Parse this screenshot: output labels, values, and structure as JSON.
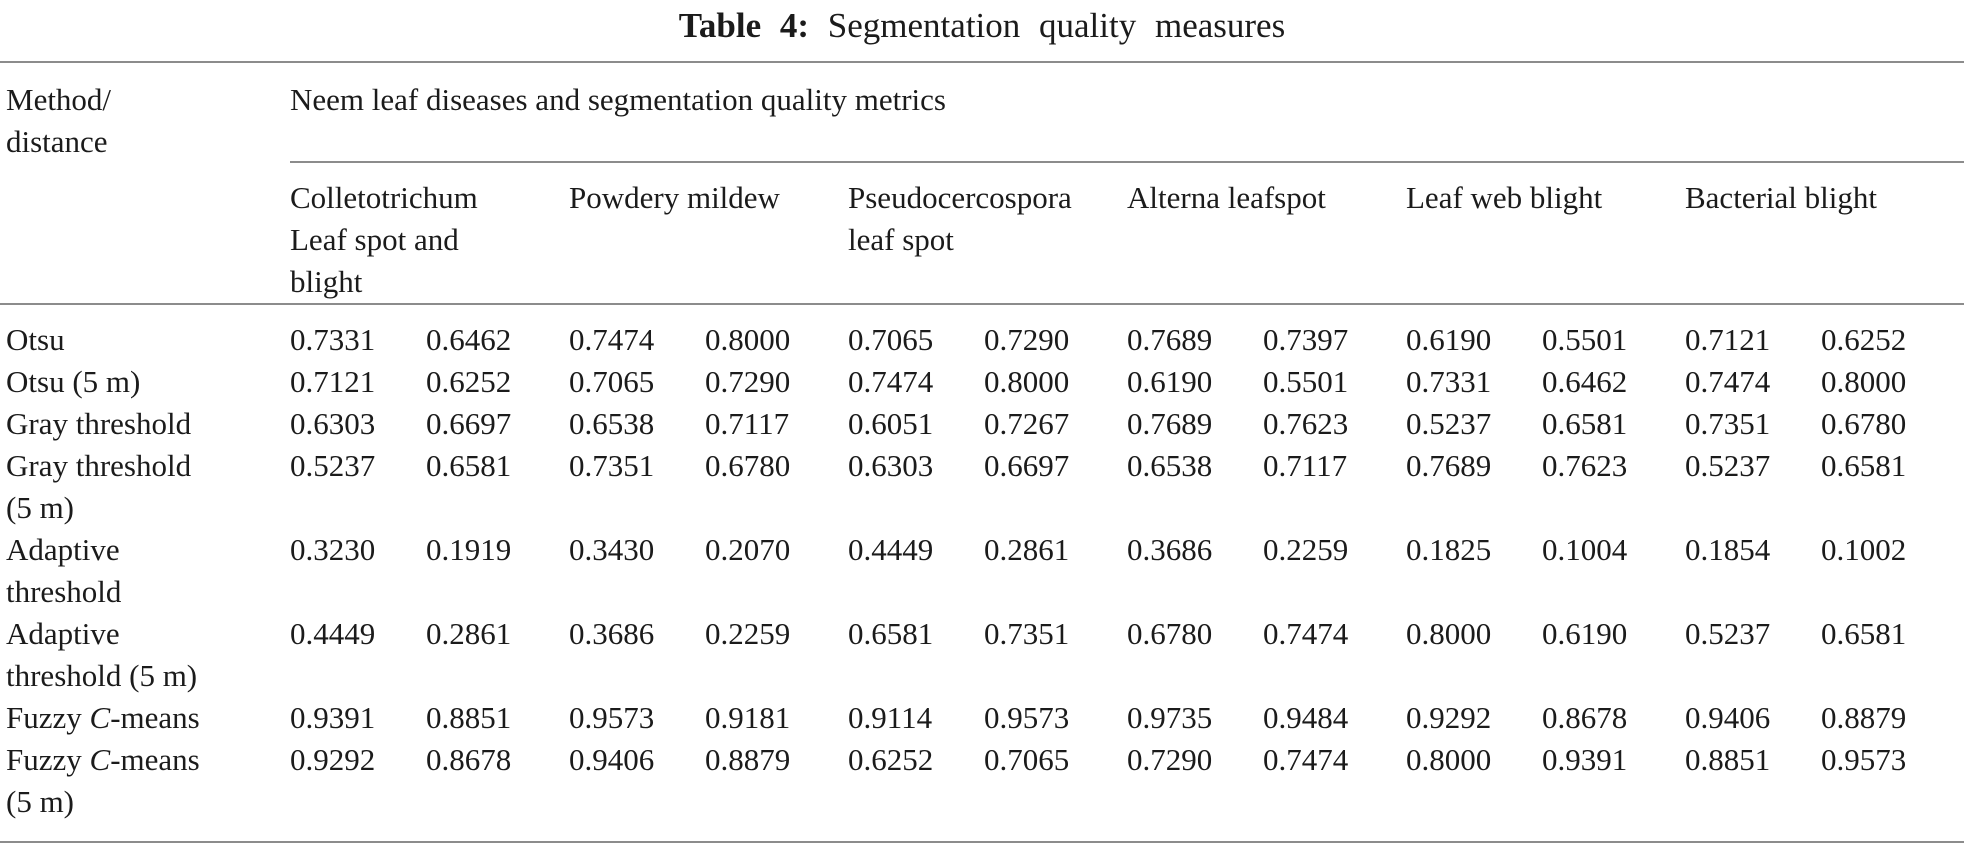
{
  "title": {
    "label": "Table 4:",
    "caption": "Segmentation quality measures"
  },
  "table": {
    "corner_header": "Method/\ndistance",
    "group_header": "Neem leaf diseases and segmentation quality metrics",
    "disease_columns": [
      "Colletotrichum\nLeaf spot and\nblight",
      "Powdery mildew",
      "Pseudocercospora\nleaf spot",
      "Alterna leafspot",
      "Leaf web blight",
      "Bacterial blight"
    ],
    "rows": [
      {
        "method": "Otsu",
        "values": [
          "0.7331",
          "0.6462",
          "0.7474",
          "0.8000",
          "0.7065",
          "0.7290",
          "0.7689",
          "0.7397",
          "0.6190",
          "0.5501",
          "0.7121",
          "0.6252"
        ]
      },
      {
        "method": "Otsu (5 m)",
        "values": [
          "0.7121",
          "0.6252",
          "0.7065",
          "0.7290",
          "0.7474",
          "0.8000",
          "0.6190",
          "0.5501",
          "0.7331",
          "0.6462",
          "0.7474",
          "0.8000"
        ]
      },
      {
        "method": "Gray threshold",
        "values": [
          "0.6303",
          "0.6697",
          "0.6538",
          "0.7117",
          "0.6051",
          "0.7267",
          "0.7689",
          "0.7623",
          "0.5237",
          "0.6581",
          "0.7351",
          "0.6780"
        ]
      },
      {
        "method": "Gray threshold\n(5 m)",
        "values": [
          "0.5237",
          "0.6581",
          "0.7351",
          "0.6780",
          "0.6303",
          "0.6697",
          "0.6538",
          "0.7117",
          "0.7689",
          "0.7623",
          "0.5237",
          "0.6581"
        ]
      },
      {
        "method": "Adaptive\nthreshold",
        "values": [
          "0.3230",
          "0.1919",
          "0.3430",
          "0.2070",
          "0.4449",
          "0.2861",
          "0.3686",
          "0.2259",
          "0.1825",
          "0.1004",
          "0.1854",
          "0.1002"
        ]
      },
      {
        "method": "Adaptive\nthreshold (5 m)",
        "values": [
          "0.4449",
          "0.2861",
          "0.3686",
          "0.2259",
          "0.6581",
          "0.7351",
          "0.6780",
          "0.7474",
          "0.8000",
          "0.6190",
          "0.5237",
          "0.6581"
        ]
      },
      {
        "method": "Fuzzy C-means",
        "values": [
          "0.9391",
          "0.8851",
          "0.9573",
          "0.9181",
          "0.9114",
          "0.9573",
          "0.9735",
          "0.9484",
          "0.9292",
          "0.8678",
          "0.9406",
          "0.8879"
        ]
      },
      {
        "method": "Fuzzy C-means\n(5 m)",
        "values": [
          "0.9292",
          "0.8678",
          "0.9406",
          "0.8879",
          "0.6252",
          "0.7065",
          "0.7290",
          "0.7474",
          "0.8000",
          "0.9391",
          "0.8851",
          "0.9573"
        ]
      }
    ]
  },
  "colors": {
    "text": "#1b1b1b",
    "rule": "#8c8c8c"
  }
}
